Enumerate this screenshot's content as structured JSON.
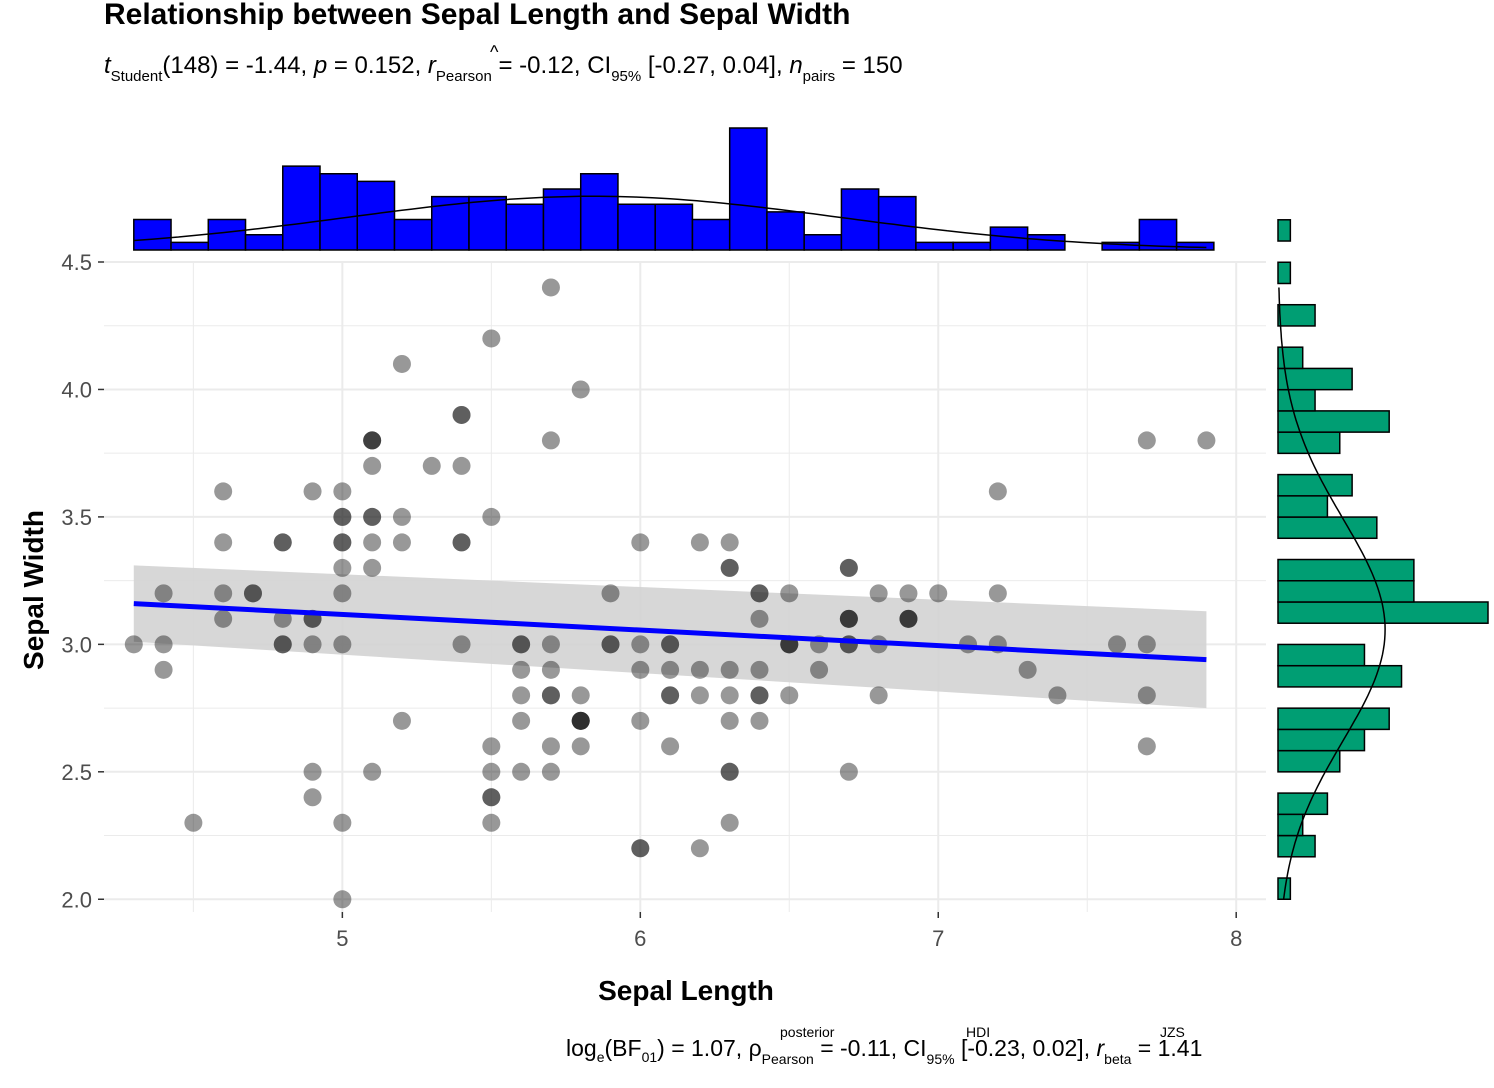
{
  "chart_data": {
    "type": "scatter",
    "title": "Relationship between Sepal Length and Sepal Width",
    "subtitle": {
      "t_label": "t",
      "t_sub": "Student",
      "t_rest": "(148) = -1.44, ",
      "p_label": "p",
      "p_rest": " = 0.152, ",
      "r_label": "r",
      "r_sub": "Pearson",
      "r_rest": " = -0.12, CI",
      "ci_sub": "95%",
      "ci_rest": " [-0.27, 0.04], ",
      "n_label": "n",
      "n_sub": "pairs",
      "n_rest": " = 150"
    },
    "caption": {
      "log_text": "log",
      "log_sub": "e",
      "bf_text": "(BF",
      "bf_sub": "01",
      "bf_rest": ") = 1.07, ",
      "rho": "ρ",
      "rho_sup": "posterior",
      "rho_sub": "Pearson",
      "rho_rest": " = -0.11, CI",
      "ci_sup": "HDI",
      "ci_sub": "95%",
      "ci_rest": " [-0.23, 0.02], ",
      "r_text": "r",
      "r_sup": "JZS",
      "r_sub": "beta",
      "r_rest": " = 1.41"
    },
    "xlabel": "Sepal Length",
    "ylabel": "Sepal Width",
    "xlim": [
      4.2,
      8.1
    ],
    "ylim": [
      1.95,
      4.5
    ],
    "xticks": [
      "5",
      "6",
      "7",
      "8"
    ],
    "yticks": [
      "2.0",
      "2.5",
      "3.0",
      "3.5",
      "4.0",
      "4.5"
    ],
    "grid": true,
    "colors": {
      "points": "#1a1a1a",
      "regression": "#0000ff",
      "ribbon": "#d3d3d3",
      "top_histogram": "#0000ff",
      "right_histogram": "#009e73",
      "panel": "#ffffff",
      "grid": "#ebebeb"
    },
    "regression": {
      "x": [
        4.3,
        7.9
      ],
      "y": [
        3.16,
        2.94
      ],
      "ci_lower": [
        3.01,
        2.75
      ],
      "ci_upper": [
        3.31,
        3.13
      ]
    },
    "points": [
      [
        5.1,
        3.5
      ],
      [
        4.9,
        3.0
      ],
      [
        4.7,
        3.2
      ],
      [
        4.6,
        3.1
      ],
      [
        5.0,
        3.6
      ],
      [
        5.4,
        3.9
      ],
      [
        4.6,
        3.4
      ],
      [
        5.0,
        3.4
      ],
      [
        4.4,
        2.9
      ],
      [
        4.9,
        3.1
      ],
      [
        5.4,
        3.7
      ],
      [
        4.8,
        3.4
      ],
      [
        4.8,
        3.0
      ],
      [
        4.3,
        3.0
      ],
      [
        5.8,
        4.0
      ],
      [
        5.7,
        4.4
      ],
      [
        5.4,
        3.9
      ],
      [
        5.1,
        3.5
      ],
      [
        5.7,
        3.8
      ],
      [
        5.1,
        3.8
      ],
      [
        5.4,
        3.4
      ],
      [
        5.1,
        3.7
      ],
      [
        4.6,
        3.6
      ],
      [
        5.1,
        3.3
      ],
      [
        4.8,
        3.4
      ],
      [
        5.0,
        3.0
      ],
      [
        5.0,
        3.4
      ],
      [
        5.2,
        3.5
      ],
      [
        5.2,
        3.4
      ],
      [
        4.7,
        3.2
      ],
      [
        4.8,
        3.1
      ],
      [
        5.4,
        3.4
      ],
      [
        5.2,
        4.1
      ],
      [
        5.5,
        4.2
      ],
      [
        4.9,
        3.1
      ],
      [
        5.0,
        3.2
      ],
      [
        5.5,
        3.5
      ],
      [
        4.9,
        3.6
      ],
      [
        4.4,
        3.0
      ],
      [
        5.1,
        3.4
      ],
      [
        5.0,
        3.5
      ],
      [
        4.5,
        2.3
      ],
      [
        4.4,
        3.2
      ],
      [
        5.0,
        3.5
      ],
      [
        5.1,
        3.8
      ],
      [
        4.8,
        3.0
      ],
      [
        5.1,
        3.8
      ],
      [
        4.6,
        3.2
      ],
      [
        5.3,
        3.7
      ],
      [
        5.0,
        3.3
      ],
      [
        7.0,
        3.2
      ],
      [
        6.4,
        3.2
      ],
      [
        6.9,
        3.1
      ],
      [
        5.5,
        2.3
      ],
      [
        6.5,
        2.8
      ],
      [
        5.7,
        2.8
      ],
      [
        6.3,
        3.3
      ],
      [
        4.9,
        2.4
      ],
      [
        6.6,
        2.9
      ],
      [
        5.2,
        2.7
      ],
      [
        5.0,
        2.0
      ],
      [
        5.9,
        3.0
      ],
      [
        6.0,
        2.2
      ],
      [
        6.1,
        2.9
      ],
      [
        5.6,
        2.9
      ],
      [
        6.7,
        3.1
      ],
      [
        5.6,
        3.0
      ],
      [
        5.8,
        2.7
      ],
      [
        6.2,
        2.2
      ],
      [
        5.6,
        2.5
      ],
      [
        5.9,
        3.2
      ],
      [
        6.1,
        2.8
      ],
      [
        6.3,
        2.5
      ],
      [
        6.1,
        2.8
      ],
      [
        6.4,
        2.9
      ],
      [
        6.6,
        3.0
      ],
      [
        6.8,
        2.8
      ],
      [
        6.7,
        3.0
      ],
      [
        6.0,
        2.9
      ],
      [
        5.7,
        2.6
      ],
      [
        5.5,
        2.4
      ],
      [
        5.5,
        2.4
      ],
      [
        5.8,
        2.7
      ],
      [
        6.0,
        2.7
      ],
      [
        5.4,
        3.0
      ],
      [
        6.0,
        3.4
      ],
      [
        6.7,
        3.1
      ],
      [
        6.3,
        2.3
      ],
      [
        5.6,
        3.0
      ],
      [
        5.5,
        2.5
      ],
      [
        5.5,
        2.6
      ],
      [
        6.1,
        3.0
      ],
      [
        5.8,
        2.6
      ],
      [
        5.0,
        2.3
      ],
      [
        5.6,
        2.7
      ],
      [
        5.7,
        3.0
      ],
      [
        5.7,
        2.9
      ],
      [
        6.2,
        2.9
      ],
      [
        5.1,
        2.5
      ],
      [
        5.7,
        2.8
      ],
      [
        6.3,
        3.3
      ],
      [
        5.8,
        2.7
      ],
      [
        7.1,
        3.0
      ],
      [
        6.3,
        2.9
      ],
      [
        6.5,
        3.0
      ],
      [
        7.6,
        3.0
      ],
      [
        4.9,
        2.5
      ],
      [
        7.3,
        2.9
      ],
      [
        6.7,
        2.5
      ],
      [
        7.2,
        3.6
      ],
      [
        6.5,
        3.2
      ],
      [
        6.4,
        2.7
      ],
      [
        6.8,
        3.0
      ],
      [
        5.7,
        2.5
      ],
      [
        5.8,
        2.8
      ],
      [
        6.4,
        3.2
      ],
      [
        6.5,
        3.0
      ],
      [
        7.7,
        3.8
      ],
      [
        7.7,
        2.6
      ],
      [
        6.0,
        2.2
      ],
      [
        6.9,
        3.2
      ],
      [
        5.6,
        2.8
      ],
      [
        7.7,
        2.8
      ],
      [
        6.3,
        2.7
      ],
      [
        6.7,
        3.3
      ],
      [
        7.2,
        3.2
      ],
      [
        6.2,
        2.8
      ],
      [
        6.1,
        3.0
      ],
      [
        6.4,
        2.8
      ],
      [
        7.2,
        3.0
      ],
      [
        7.4,
        2.8
      ],
      [
        7.9,
        3.8
      ],
      [
        6.4,
        2.8
      ],
      [
        6.3,
        2.8
      ],
      [
        6.1,
        2.6
      ],
      [
        7.7,
        3.0
      ],
      [
        6.3,
        3.4
      ],
      [
        6.4,
        3.1
      ],
      [
        6.0,
        3.0
      ],
      [
        6.9,
        3.1
      ],
      [
        6.7,
        3.1
      ],
      [
        6.9,
        3.1
      ],
      [
        5.8,
        2.7
      ],
      [
        6.8,
        3.2
      ],
      [
        6.7,
        3.3
      ],
      [
        6.7,
        3.0
      ],
      [
        6.3,
        2.5
      ],
      [
        6.5,
        3.0
      ],
      [
        6.2,
        3.4
      ],
      [
        5.9,
        3.0
      ]
    ],
    "top_histogram": {
      "bin_start": 4.3,
      "bin_width": 0.125,
      "counts": [
        4,
        1,
        4,
        2,
        11,
        10,
        9,
        4,
        7,
        7,
        6,
        8,
        10,
        6,
        6,
        4,
        16,
        5,
        2,
        8,
        7,
        1,
        1,
        3,
        2,
        0,
        1,
        4,
        1
      ],
      "density_curve": true
    },
    "right_histogram": {
      "bin_start": 2.0,
      "bin_width": 0.0833,
      "counts": [
        1,
        0,
        3,
        2,
        4,
        0,
        5,
        7,
        9,
        0,
        10,
        7,
        0,
        17,
        11,
        11,
        0,
        8,
        4,
        6,
        0,
        5,
        9,
        3,
        6,
        2,
        0,
        3,
        0,
        1,
        0,
        1
      ],
      "density_curve": true
    }
  }
}
